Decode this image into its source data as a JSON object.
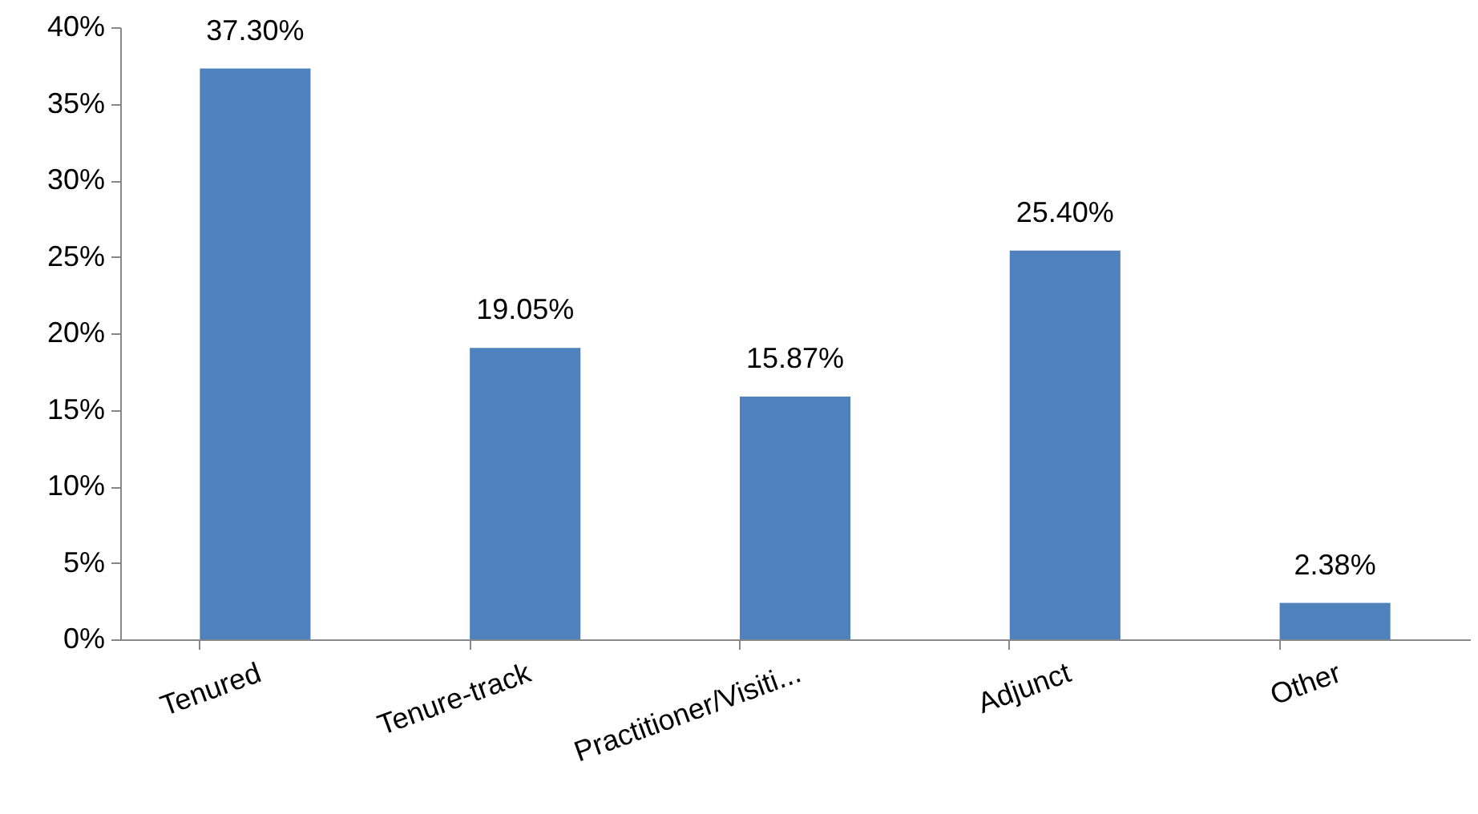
{
  "chart_data": {
    "type": "bar",
    "categories": [
      "Tenured",
      "Tenure-track",
      "Practitioner/Visiti...",
      "Adjunct",
      "Other"
    ],
    "values": [
      37.3,
      19.05,
      15.87,
      25.4,
      2.38
    ],
    "value_labels": [
      "37.30%",
      "19.05%",
      "15.87%",
      "25.40%",
      "2.38%"
    ],
    "color": "#4f81bd",
    "ylim": [
      0,
      40
    ],
    "yticks": [
      {
        "value": 0,
        "label": "0%"
      },
      {
        "value": 5,
        "label": "5%"
      },
      {
        "value": 10,
        "label": "10%"
      },
      {
        "value": 15,
        "label": "15%"
      },
      {
        "value": 20,
        "label": "20%"
      },
      {
        "value": 25,
        "label": "25%"
      },
      {
        "value": 30,
        "label": "30%"
      },
      {
        "value": 35,
        "label": "35%"
      },
      {
        "value": 40,
        "label": "40%"
      }
    ],
    "grid": false
  }
}
